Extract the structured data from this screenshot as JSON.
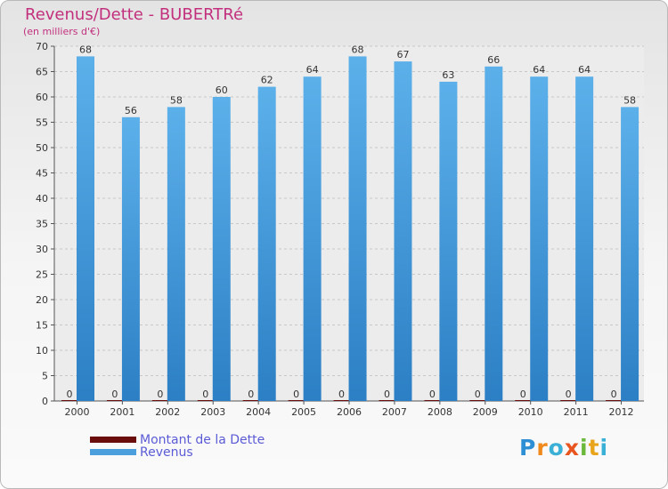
{
  "header": {
    "title": "Revenus/Dette - BUBERTRé",
    "subtitle": "(en milliers d'€)"
  },
  "chart_data": {
    "type": "bar",
    "categories": [
      "2000",
      "2001",
      "2002",
      "2003",
      "2004",
      "2005",
      "2006",
      "2007",
      "2008",
      "2009",
      "2010",
      "2011",
      "2012"
    ],
    "series": [
      {
        "name": "Montant de la Dette",
        "color": "#6b0d0d",
        "values": [
          0,
          0,
          0,
          0,
          0,
          0,
          0,
          0,
          0,
          0,
          0,
          0,
          0
        ]
      },
      {
        "name": "Revenus",
        "color": "#4a9fdc",
        "values": [
          68,
          56,
          58,
          60,
          62,
          64,
          68,
          67,
          63,
          66,
          64,
          64,
          58
        ]
      }
    ],
    "yticks": [
      "0",
      "5",
      "10",
      "15",
      "20",
      "25",
      "30",
      "35",
      "40",
      "45",
      "50",
      "55",
      "60",
      "65",
      "70"
    ],
    "ylim": [
      0,
      70
    ],
    "grid": "horizontal dashed",
    "legend_position": "bottom-left"
  },
  "legend": {
    "items": [
      {
        "label": "Montant de la Dette",
        "color": "#6b0d0d"
      },
      {
        "label": "Revenus",
        "color": "#4a9fdc"
      }
    ]
  },
  "logo": {
    "text": "Proxiti"
  }
}
